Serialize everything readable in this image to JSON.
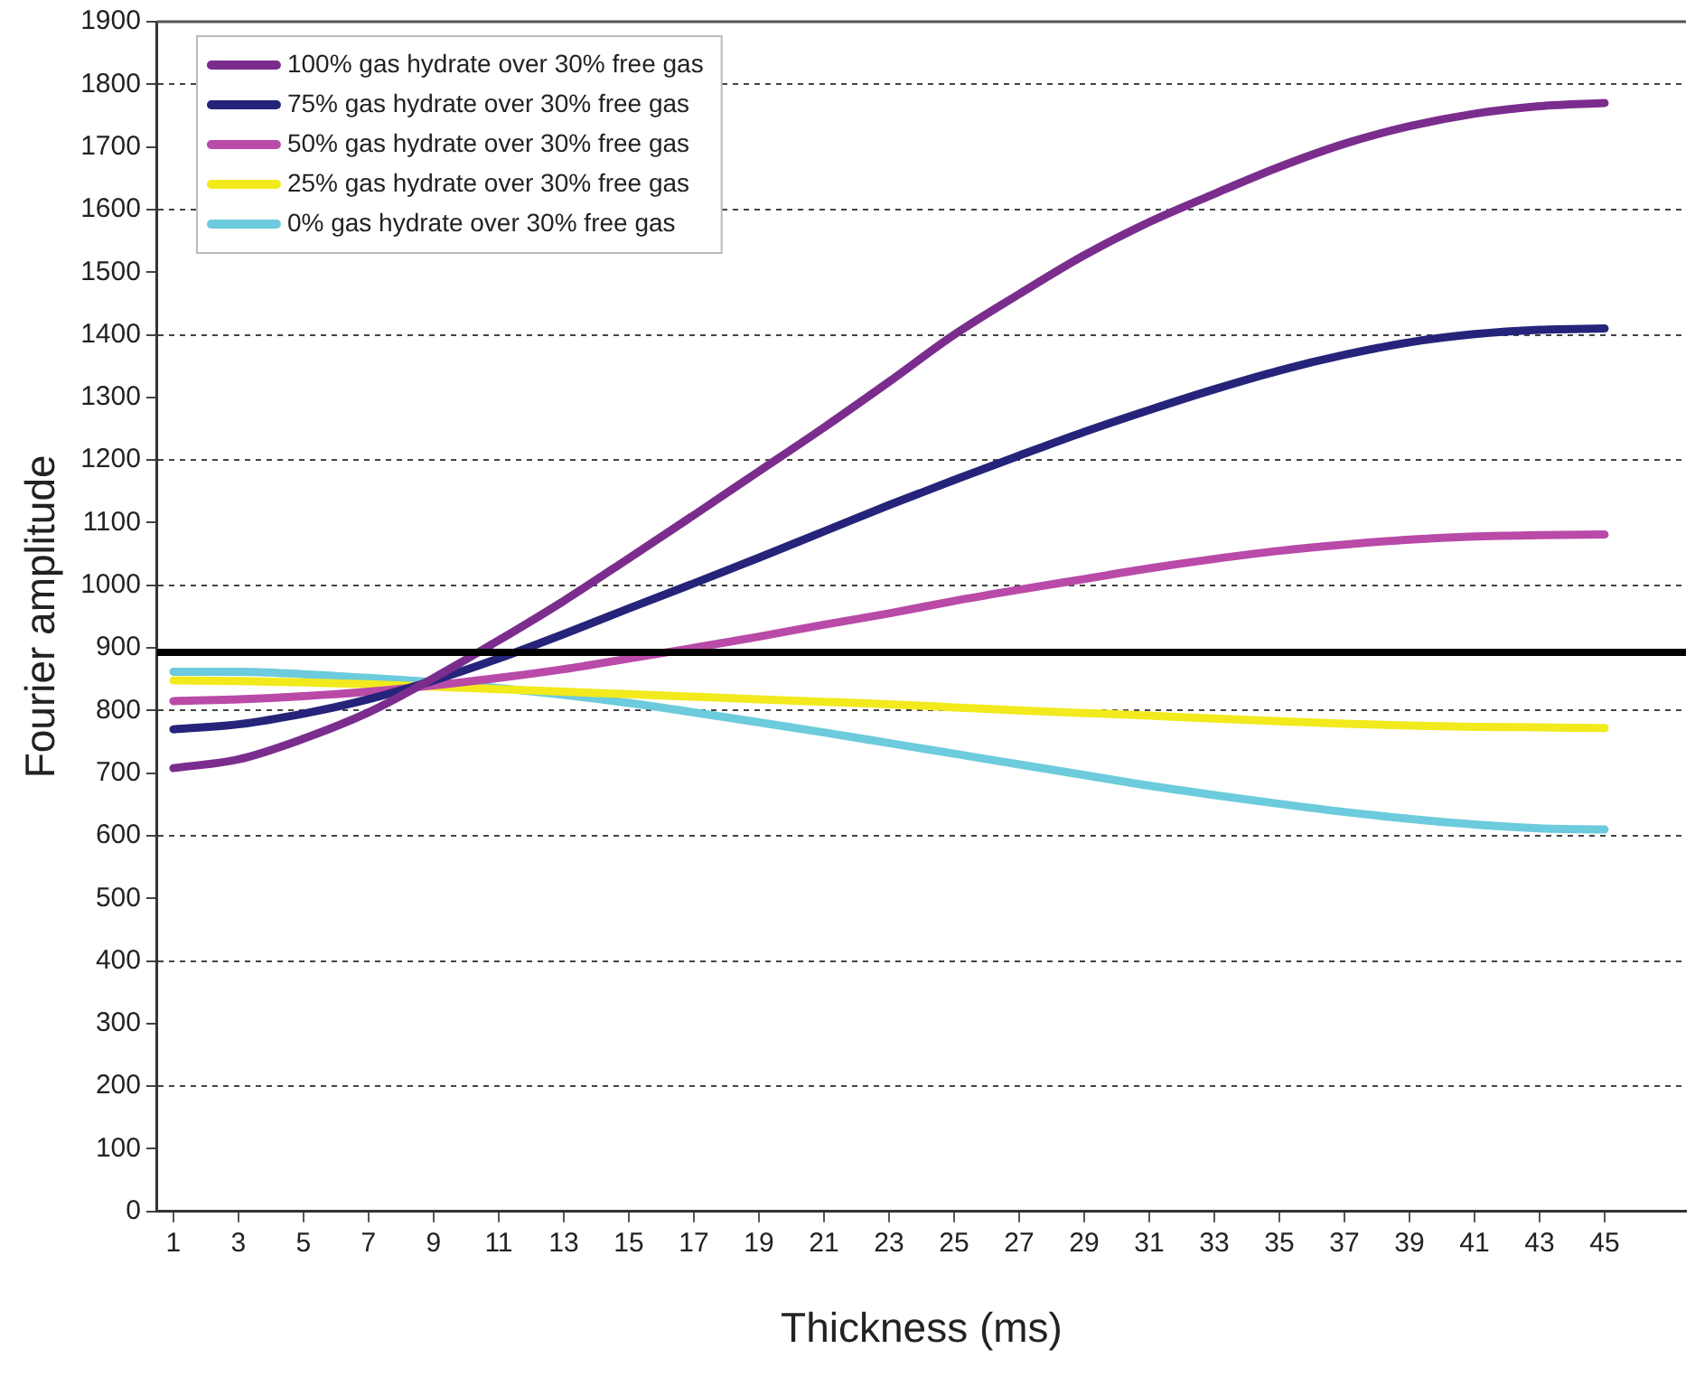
{
  "chart_data": {
    "type": "line",
    "xlabel": "Thickness (ms)",
    "ylabel": "Fourier amplitude",
    "x": [
      1,
      3,
      5,
      7,
      9,
      11,
      13,
      15,
      17,
      19,
      21,
      23,
      25,
      27,
      29,
      31,
      33,
      35,
      37,
      39,
      41,
      43,
      45
    ],
    "series": [
      {
        "name": "100% gas hydrate over 30% free gas",
        "color": "#7b2d8e",
        "values": [
          708,
          722,
          755,
          797,
          852,
          912,
          975,
          1043,
          1112,
          1182,
          1252,
          1325,
          1400,
          1465,
          1527,
          1580,
          1625,
          1668,
          1705,
          1733,
          1753,
          1765,
          1770
        ]
      },
      {
        "name": "75% gas hydrate over 30% free gas",
        "color": "#25247a",
        "values": [
          770,
          778,
          795,
          818,
          848,
          883,
          922,
          963,
          1003,
          1044,
          1086,
          1128,
          1168,
          1207,
          1245,
          1280,
          1313,
          1343,
          1368,
          1388,
          1401,
          1408,
          1410
        ]
      },
      {
        "name": "50% gas hydrate over 30% free gas",
        "color": "#b94aa8",
        "values": [
          815,
          818,
          823,
          830,
          840,
          852,
          866,
          883,
          900,
          918,
          937,
          955,
          975,
          993,
          1010,
          1027,
          1042,
          1055,
          1065,
          1073,
          1078,
          1080,
          1081
        ]
      },
      {
        "name": "25% gas hydrate over 30% free gas",
        "color": "#f2ea1c",
        "values": [
          848,
          847,
          845,
          842,
          838,
          834,
          830,
          826,
          822,
          818,
          814,
          810,
          805,
          800,
          796,
          792,
          787,
          783,
          779,
          776,
          774,
          773,
          772
        ]
      },
      {
        "name": "0% gas hydrate over 30% free gas",
        "color": "#6ccbdc",
        "values": [
          862,
          862,
          858,
          852,
          845,
          836,
          825,
          812,
          797,
          781,
          765,
          748,
          731,
          714,
          697,
          680,
          665,
          651,
          638,
          627,
          618,
          612,
          610
        ]
      }
    ],
    "xlim": [
      0.5,
      47.5
    ],
    "xticks": [
      1,
      3,
      5,
      7,
      9,
      11,
      13,
      15,
      17,
      19,
      21,
      23,
      25,
      27,
      29,
      31,
      33,
      35,
      37,
      39,
      41,
      43,
      45
    ],
    "ylim": [
      0,
      1900
    ],
    "yticks": [
      0,
      100,
      200,
      300,
      400,
      500,
      600,
      700,
      800,
      900,
      1000,
      1100,
      1200,
      1300,
      1400,
      1500,
      1600,
      1700,
      1800,
      1900
    ],
    "ref_lines": [
      {
        "axis": "y",
        "value": 893,
        "color": "#000000"
      }
    ],
    "grid": "y",
    "legend": "top left",
    "marker": "none",
    "line_style": "solid"
  }
}
